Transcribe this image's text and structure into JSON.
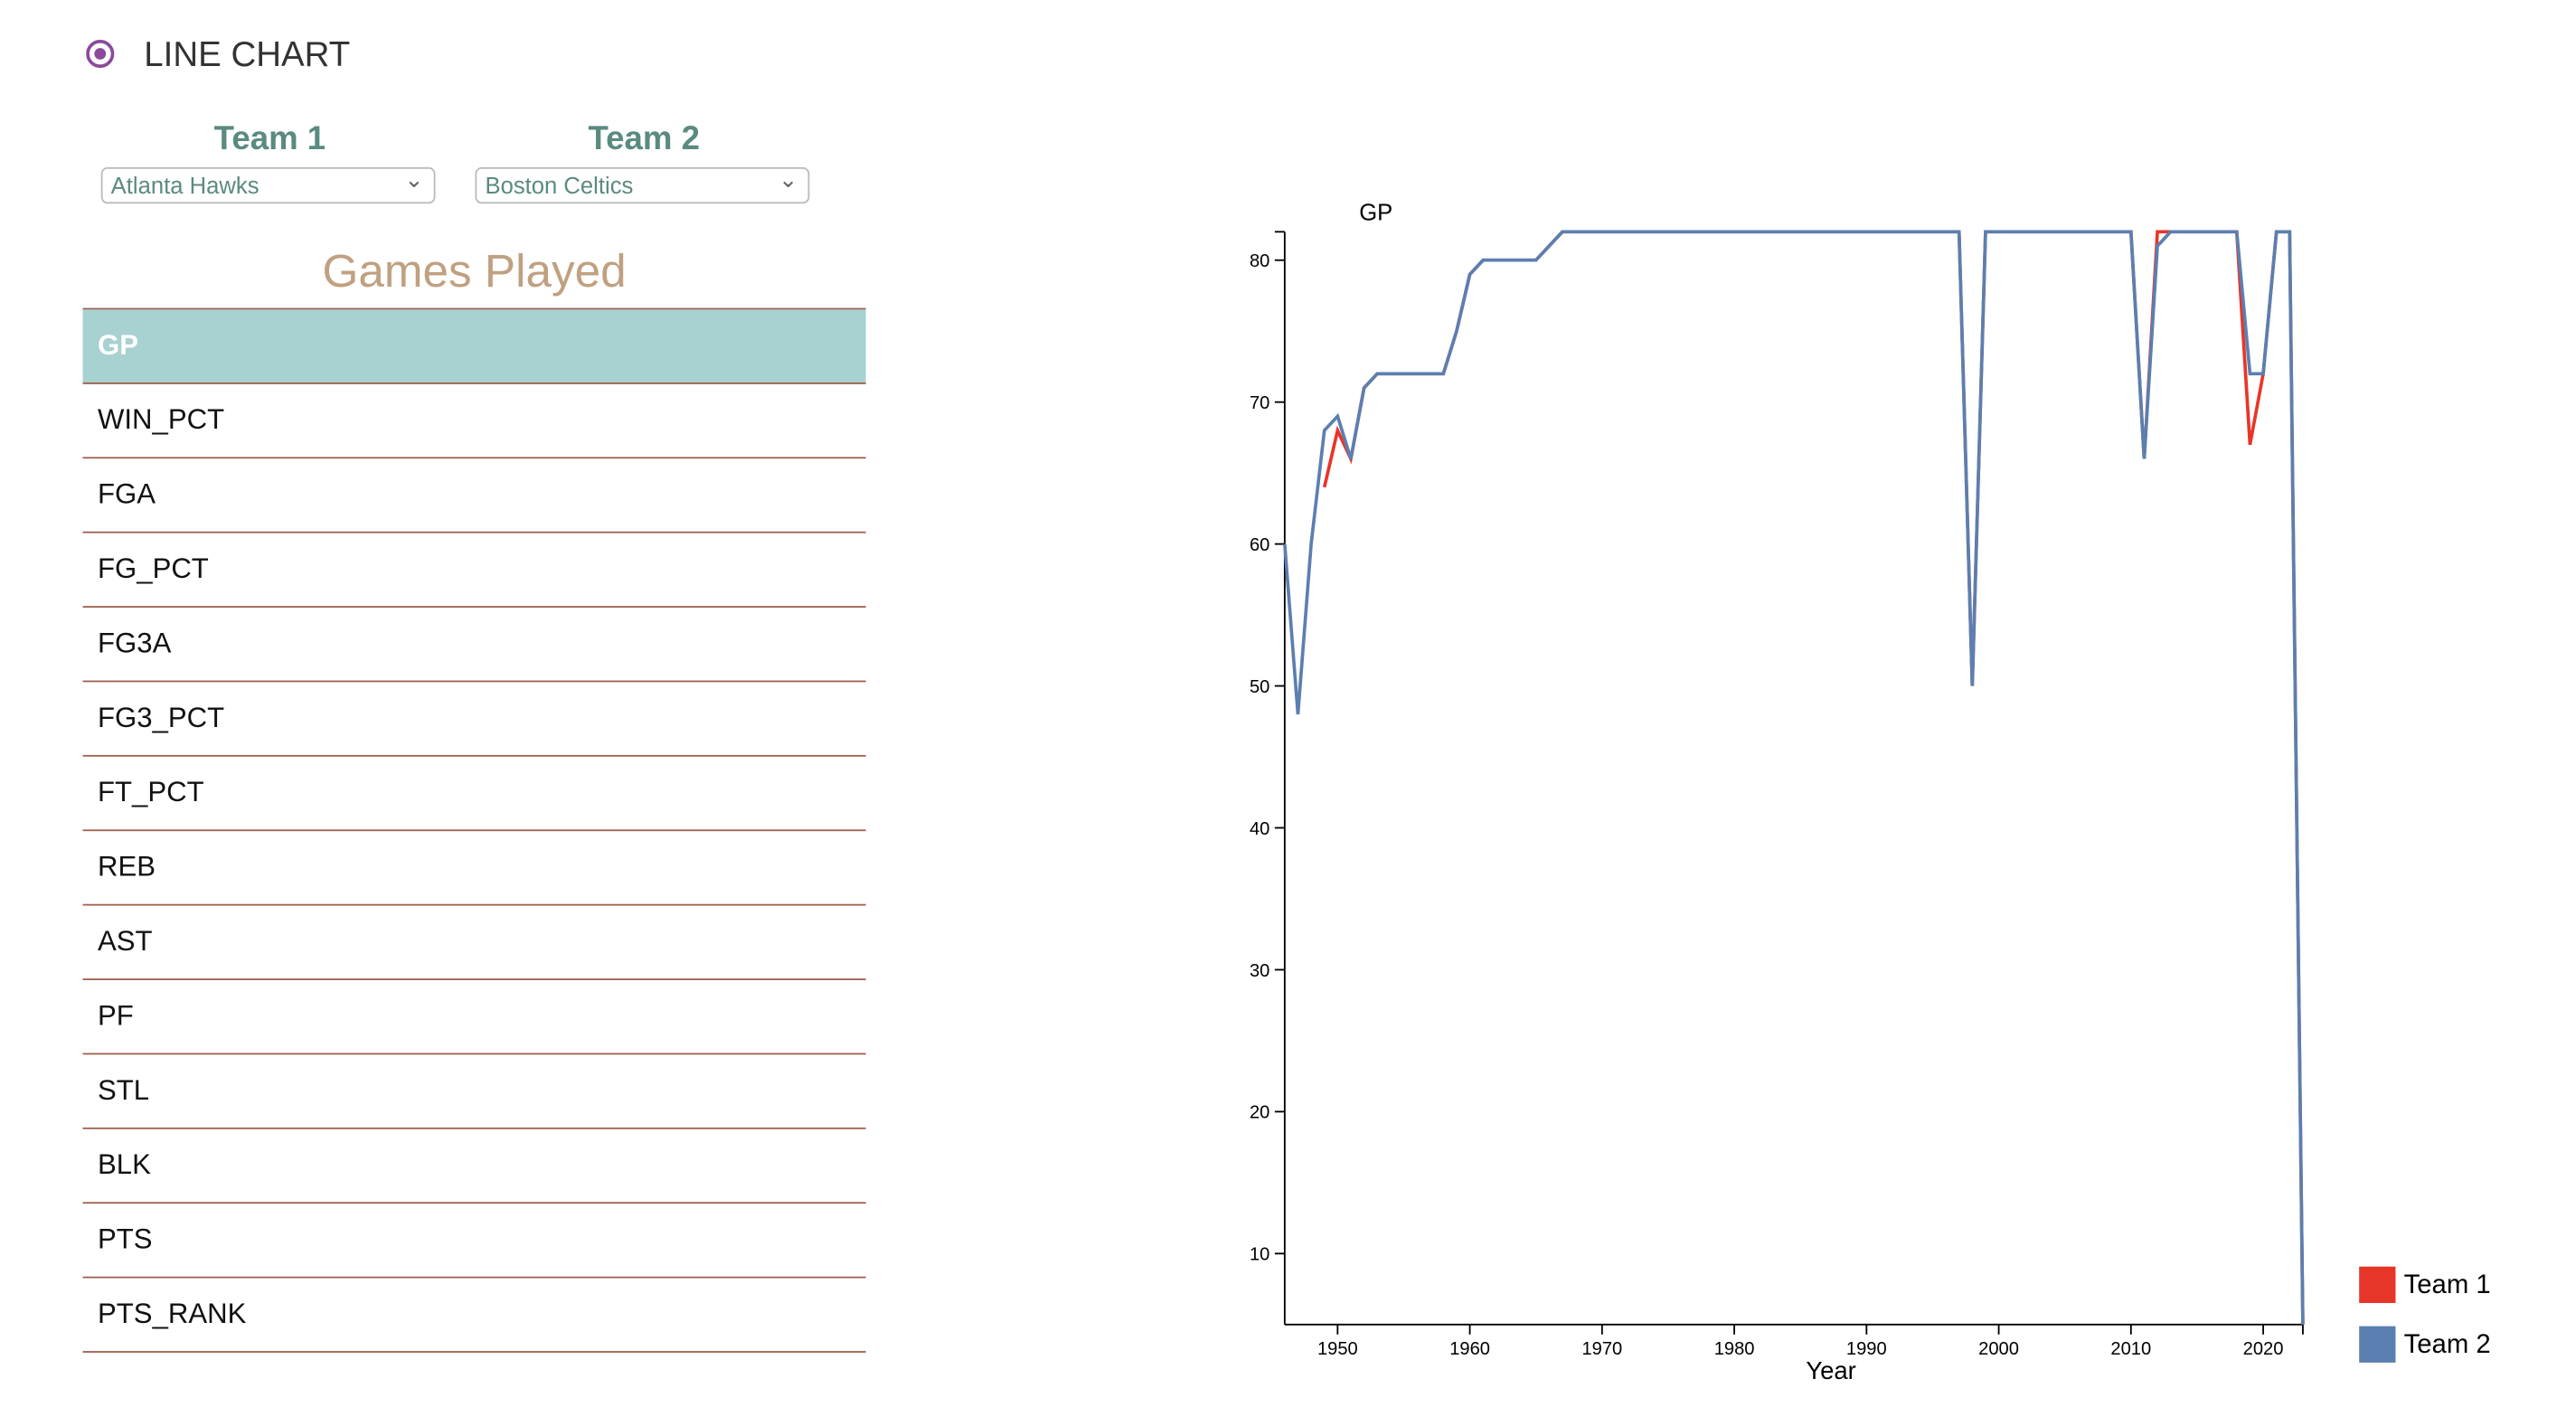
{
  "controls": {
    "chart_type": "LINE CHART",
    "team1_label": "Team 1",
    "team1_value": "Atlanta Hawks",
    "team2_label": "Team 2",
    "team2_value": "Boston Celtics"
  },
  "stat_table": {
    "title": "Games Played",
    "rows": [
      "GP",
      "WIN_PCT",
      "FGA",
      "FG_PCT",
      "FG3A",
      "FG3_PCT",
      "FT_PCT",
      "REB",
      "AST",
      "PF",
      "STL",
      "BLK",
      "PTS",
      "PTS_RANK"
    ]
  },
  "chart_data": {
    "type": "line",
    "y_label": "GP",
    "x_label": "Year",
    "x": [
      1946,
      1947,
      1948,
      1949,
      1950,
      1951,
      1952,
      1953,
      1954,
      1955,
      1956,
      1957,
      1958,
      1959,
      1960,
      1961,
      1962,
      1963,
      1964,
      1965,
      1966,
      1967,
      1968,
      1969,
      1970,
      1971,
      1972,
      1973,
      1974,
      1975,
      1976,
      1977,
      1978,
      1979,
      1980,
      1981,
      1982,
      1983,
      1984,
      1985,
      1986,
      1987,
      1988,
      1989,
      1990,
      1991,
      1992,
      1993,
      1994,
      1995,
      1996,
      1997,
      1998,
      1999,
      2000,
      2001,
      2002,
      2003,
      2004,
      2005,
      2006,
      2007,
      2008,
      2009,
      2010,
      2011,
      2012,
      2013,
      2014,
      2015,
      2016,
      2017,
      2018,
      2019,
      2020,
      2021,
      2022,
      2023
    ],
    "series": [
      {
        "name": "Team 1",
        "color": "#e8352a",
        "values": [
          null,
          null,
          null,
          64,
          68,
          66,
          71,
          72,
          72,
          72,
          72,
          72,
          72,
          75,
          79,
          80,
          80,
          80,
          80,
          80,
          81,
          82,
          82,
          82,
          82,
          82,
          82,
          82,
          82,
          82,
          82,
          82,
          82,
          82,
          82,
          82,
          82,
          82,
          82,
          82,
          82,
          82,
          82,
          82,
          82,
          82,
          82,
          82,
          82,
          82,
          82,
          82,
          50,
          82,
          82,
          82,
          82,
          82,
          82,
          82,
          82,
          82,
          82,
          82,
          82,
          66,
          82,
          82,
          82,
          82,
          82,
          82,
          82,
          67,
          72,
          82,
          82,
          5
        ]
      },
      {
        "name": "Team 2",
        "color": "#5b7fb0",
        "values": [
          60,
          48,
          60,
          68,
          69,
          66,
          71,
          72,
          72,
          72,
          72,
          72,
          72,
          75,
          79,
          80,
          80,
          80,
          80,
          80,
          81,
          82,
          82,
          82,
          82,
          82,
          82,
          82,
          82,
          82,
          82,
          82,
          82,
          82,
          82,
          82,
          82,
          82,
          82,
          82,
          82,
          82,
          82,
          82,
          82,
          82,
          82,
          82,
          82,
          82,
          82,
          82,
          50,
          82,
          82,
          82,
          82,
          82,
          82,
          82,
          82,
          82,
          82,
          82,
          82,
          66,
          81,
          82,
          82,
          82,
          82,
          82,
          82,
          72,
          72,
          82,
          82,
          5
        ]
      }
    ],
    "xlim": [
      1946,
      2023
    ],
    "xticks": [
      1950,
      1960,
      1970,
      1980,
      1990,
      2000,
      2010,
      2020
    ],
    "ylim": [
      5,
      82
    ],
    "yticks": [
      10,
      20,
      30,
      40,
      50,
      60,
      70,
      80
    ]
  }
}
